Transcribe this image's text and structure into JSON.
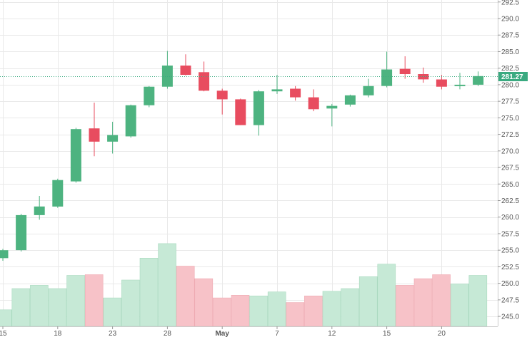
{
  "chart_data": {
    "type": "candlestick",
    "title": "",
    "xlabel": "",
    "ylabel": "",
    "ylim": [
      243.5,
      292.8
    ],
    "yticks": [
      245.0,
      247.5,
      250.0,
      252.5,
      255.0,
      257.5,
      260.0,
      262.5,
      265.0,
      267.5,
      270.0,
      272.5,
      275.0,
      277.5,
      280.0,
      282.5,
      285.0,
      287.5,
      290.0,
      292.5
    ],
    "xtick_labels": [
      {
        "label": "15",
        "index": 0
      },
      {
        "label": "18",
        "index": 3
      },
      {
        "label": "23",
        "index": 6
      },
      {
        "label": "28",
        "index": 9
      },
      {
        "label": "May",
        "index": 12
      },
      {
        "label": "7",
        "index": 15
      },
      {
        "label": "12",
        "index": 18
      },
      {
        "label": "15",
        "index": 21
      },
      {
        "label": "20",
        "index": 24
      }
    ],
    "last_price_label": "281.27",
    "last_price": 281.27,
    "grid": true,
    "colors": {
      "up": "#4db380",
      "down": "#e84c5f",
      "up_volume": "#c6e9d6",
      "down_volume": "#f7c2c8",
      "grid": "#e9e9e9",
      "price_line": "#3aaa80",
      "axis_text": "#555555"
    },
    "candles": [
      {
        "open": 253.8,
        "high": 255.2,
        "low": 253.4,
        "close": 255.0,
        "volume": 246.0
      },
      {
        "open": 255.0,
        "high": 260.5,
        "low": 254.8,
        "close": 260.3,
        "volume": 249.2
      },
      {
        "open": 260.3,
        "high": 263.2,
        "low": 259.6,
        "close": 261.6,
        "volume": 249.7
      },
      {
        "open": 261.6,
        "high": 265.8,
        "low": 261.4,
        "close": 265.6,
        "volume": 249.2
      },
      {
        "open": 265.4,
        "high": 273.5,
        "low": 265.2,
        "close": 273.3,
        "volume": 251.2
      },
      {
        "open": 273.4,
        "high": 277.3,
        "low": 269.2,
        "close": 271.4,
        "volume": 251.3
      },
      {
        "open": 271.4,
        "high": 274.4,
        "low": 269.6,
        "close": 272.4,
        "volume": 247.8
      },
      {
        "open": 272.2,
        "high": 277.0,
        "low": 272.0,
        "close": 276.9,
        "volume": 250.5
      },
      {
        "open": 276.9,
        "high": 279.8,
        "low": 276.6,
        "close": 279.7,
        "volume": 253.8
      },
      {
        "open": 279.7,
        "high": 285.1,
        "low": 279.4,
        "close": 282.9,
        "volume": 256.0
      },
      {
        "open": 282.9,
        "high": 284.6,
        "low": 281.4,
        "close": 281.5,
        "volume": 252.6
      },
      {
        "open": 281.9,
        "high": 283.5,
        "low": 279.0,
        "close": 279.1,
        "volume": 250.7
      },
      {
        "open": 279.1,
        "high": 279.4,
        "low": 275.5,
        "close": 277.8,
        "volume": 247.8
      },
      {
        "open": 277.8,
        "high": 277.9,
        "low": 273.9,
        "close": 273.9,
        "volume": 248.2
      },
      {
        "open": 273.9,
        "high": 279.2,
        "low": 272.3,
        "close": 279.0,
        "volume": 248.1
      },
      {
        "open": 279.0,
        "high": 281.5,
        "low": 278.6,
        "close": 279.3,
        "volume": 248.7
      },
      {
        "open": 279.4,
        "high": 279.8,
        "low": 277.6,
        "close": 278.1,
        "volume": 247.1
      },
      {
        "open": 278.1,
        "high": 279.3,
        "low": 276.0,
        "close": 276.3,
        "volume": 248.1
      },
      {
        "open": 276.4,
        "high": 277.1,
        "low": 273.7,
        "close": 276.8,
        "volume": 248.8
      },
      {
        "open": 277.0,
        "high": 278.5,
        "low": 276.7,
        "close": 278.4,
        "volume": 249.2
      },
      {
        "open": 278.4,
        "high": 280.9,
        "low": 278.1,
        "close": 279.8,
        "volume": 251.0
      },
      {
        "open": 279.8,
        "high": 285.0,
        "low": 279.6,
        "close": 282.3,
        "volume": 252.9
      },
      {
        "open": 282.4,
        "high": 284.3,
        "low": 280.9,
        "close": 281.6,
        "volume": 249.7
      },
      {
        "open": 281.6,
        "high": 282.6,
        "low": 280.3,
        "close": 280.8,
        "volume": 250.7
      },
      {
        "open": 280.8,
        "high": 281.5,
        "low": 279.3,
        "close": 279.7,
        "volume": 251.3
      },
      {
        "open": 279.8,
        "high": 281.8,
        "low": 279.3,
        "close": 280.0,
        "volume": 249.9
      },
      {
        "open": 280.0,
        "high": 282.0,
        "low": 279.8,
        "close": 281.3,
        "volume": 251.2
      }
    ]
  }
}
